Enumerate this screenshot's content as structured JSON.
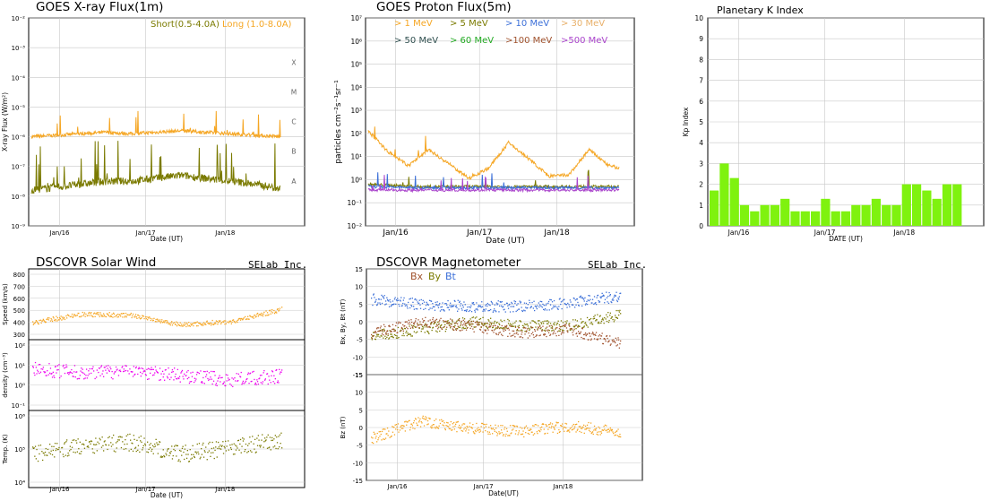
{
  "colors": {
    "orange": "#f5a623",
    "olive": "#7a7a00",
    "green": "#7ff20f",
    "magenta": "#ee00ee",
    "blue": "#3b6fd8",
    "brown": "#a0522d",
    "grid": "#c8c8c8"
  },
  "chart_data": [
    {
      "id": "xray",
      "type": "line",
      "title": "GOES X-ray Flux(1m)",
      "ylabel": "X-ray Flux (W/m²)",
      "xlabel": "Date (UT)",
      "yscale": "log",
      "ylim": [
        -9,
        -2
      ],
      "ytick_labels": [
        "10⁻²",
        "10⁻³",
        "10⁻⁴",
        "10⁻⁵",
        "10⁻⁶",
        "10⁻⁷",
        "10⁻⁸",
        "10⁻⁹"
      ],
      "flare_classes": [
        "X",
        "M",
        "C",
        "B",
        "A"
      ],
      "x_ticks": [
        "Jan/16",
        "Jan/17",
        "Jan/18"
      ],
      "legend": [
        {
          "name": "Short(0.5-4.0A)",
          "color": "#7a7a00"
        },
        {
          "name": "Long (1.0-8.0A)",
          "color": "#f5a623"
        }
      ],
      "series": [
        {
          "name": "Long (1.0-8.0A)",
          "color": "#f5a623",
          "x": [
            0,
            0.5,
            1,
            1.5,
            2,
            2.5,
            3,
            3.5,
            4,
            4.5,
            5
          ],
          "values": [
            -6,
            -5.95,
            -5.9,
            -5.85,
            -5.9,
            -5.85,
            -5.8,
            -5.85,
            -5.9,
            -5.95,
            -6
          ]
        },
        {
          "name": "Short(0.5-4.0A)",
          "color": "#7a7a00",
          "x": [
            0,
            0.5,
            1,
            1.5,
            2,
            2.5,
            3,
            3.5,
            4,
            4.5,
            5
          ],
          "values": [
            -7.8,
            -7.7,
            -7.6,
            -7.5,
            -7.5,
            -7.4,
            -7.3,
            -7.4,
            -7.5,
            -7.6,
            -7.75
          ]
        }
      ]
    },
    {
      "id": "proton",
      "type": "line",
      "title": "GOES Proton Flux(5m)",
      "ylabel": "particles cm⁻²s⁻¹sr⁻¹",
      "xlabel": "Date (UT)",
      "yscale": "log",
      "ylim": [
        -2,
        7
      ],
      "ytick_labels": [
        "10⁷",
        "10⁶",
        "10⁵",
        "10⁴",
        "10³",
        "10²",
        "10¹",
        "10⁰",
        "10⁻¹",
        "10⁻²"
      ],
      "x_ticks": [
        "Jan/16",
        "Jan/17",
        "Jan/18"
      ],
      "legend": [
        {
          "name": "> 1 MeV",
          "color": "#f5a623"
        },
        {
          "name": "> 5 MeV",
          "color": "#7a7a00"
        },
        {
          "name": "> 10 MeV",
          "color": "#3b6fd8"
        },
        {
          "name": "> 30 MeV",
          "color": "#e8b06a"
        },
        {
          "name": "> 50 MeV",
          "color": "#2f4f4f"
        },
        {
          "name": "> 60 MeV",
          "color": "#22aa22"
        },
        {
          "name": ">100 MeV",
          "color": "#a0522d"
        },
        {
          "name": ">500 MeV",
          "color": "#aa44cc"
        }
      ],
      "series": [
        {
          "name": "> 1 MeV",
          "color": "#f5a623",
          "x": [
            0,
            0.4,
            0.8,
            1.2,
            1.6,
            2,
            2.4,
            2.8,
            3.2,
            3.6,
            4,
            4.4,
            4.8,
            5
          ],
          "values": [
            2.1,
            1.2,
            0.6,
            1.3,
            0.7,
            0.05,
            0.5,
            1.6,
            0.9,
            0.15,
            0.2,
            1.3,
            0.6,
            0.5
          ]
        },
        {
          "name": "> 5 MeV",
          "color": "#7a7a00",
          "x": [
            0,
            1,
            2,
            3,
            4,
            5
          ],
          "values": [
            -0.2,
            -0.3,
            -0.3,
            -0.3,
            -0.3,
            -0.3
          ]
        },
        {
          "name": "> 10 MeV",
          "color": "#3b6fd8",
          "x": [
            0,
            1,
            2,
            3,
            4,
            5
          ],
          "values": [
            -0.3,
            -0.35,
            -0.35,
            -0.35,
            -0.35,
            -0.35
          ]
        },
        {
          "name": ">500 MeV",
          "color": "#aa44cc",
          "x": [
            0,
            1,
            2,
            3,
            4,
            5
          ],
          "values": [
            -0.45,
            -0.45,
            -0.45,
            -0.45,
            -0.45,
            -0.45
          ]
        }
      ]
    },
    {
      "id": "kp",
      "type": "bar",
      "title": "Planetary K Index",
      "ylabel": "Kp Index",
      "xlabel": "DATE (UT)",
      "ylim": [
        0,
        10
      ],
      "ytick_labels": [
        "10",
        "9",
        "8",
        "7",
        "6",
        "5",
        "4",
        "3",
        "2",
        "1",
        "0"
      ],
      "x_ticks": [
        "Jan/16",
        "Jan/17",
        "Jan/18"
      ],
      "values": [
        1.7,
        3,
        2.3,
        1,
        0.7,
        1,
        1,
        1.3,
        0.7,
        0.7,
        0.7,
        1.3,
        0.7,
        0.7,
        1,
        1,
        1.3,
        1,
        1,
        2,
        2,
        1.7,
        1.3,
        2,
        2
      ]
    },
    {
      "id": "wind",
      "type": "scatter",
      "title": "DSCOVR Solar Wind",
      "brand": "SELab Inc.",
      "xlabel": "Date (UT)",
      "x_ticks": [
        "Jan/16",
        "Jan/17",
        "Jan/18"
      ],
      "subplots": [
        {
          "ylabel": "Speed (km/s)",
          "ylim": [
            200,
            800
          ],
          "ytick_labels": [
            "800",
            "700",
            "600",
            "500",
            "400",
            "300"
          ],
          "color": "#f5a623",
          "x": [
            0,
            1,
            2,
            3,
            4,
            5
          ],
          "values": [
            350,
            420,
            410,
            330,
            360,
            460
          ]
        },
        {
          "ylabel": "density (cm⁻³)",
          "ylim": [
            -1,
            2
          ],
          "ytick_labels": [
            "10²",
            "10¹",
            "10⁰",
            "10⁻¹"
          ],
          "color": "#ee00ee",
          "x": [
            0,
            1,
            2,
            3,
            4,
            5
          ],
          "values": [
            0.8,
            0.6,
            0.7,
            0.5,
            0.3,
            0.5
          ]
        },
        {
          "ylabel": "Temp. (K)",
          "ylim": [
            3.5,
            6.2
          ],
          "ytick_labels": [
            "10⁶",
            "10⁵",
            "10⁴"
          ],
          "color": "#7a7a00",
          "x": [
            0,
            1,
            2,
            3,
            4,
            5
          ],
          "values": [
            4.7,
            5,
            5.1,
            4.7,
            4.9,
            5.2
          ]
        }
      ]
    },
    {
      "id": "mag",
      "type": "scatter",
      "title": "DSCOVR Magnetometer",
      "brand": "SELab Inc.",
      "xlabel": "Date(UT)",
      "x_ticks": [
        "Jan/16",
        "Jan/17",
        "Jan/18"
      ],
      "legend": [
        {
          "name": "Bx",
          "color": "#a0522d"
        },
        {
          "name": "By",
          "color": "#7a7a00"
        },
        {
          "name": "Bt",
          "color": "#3b6fd8"
        }
      ],
      "subplots": [
        {
          "ylabel": "Bx, By, Bt (nT)",
          "ylim": [
            -15,
            15
          ],
          "ytick_labels": [
            "15",
            "10",
            "5",
            "0",
            "-5",
            "-10",
            "-15"
          ],
          "series": [
            {
              "name": "Bt",
              "color": "#3b6fd8",
              "x": [
                0,
                1,
                2,
                3,
                4,
                5
              ],
              "values": [
                6.5,
                5,
                4.5,
                4.5,
                5.5,
                7.5
              ]
            },
            {
              "name": "By",
              "color": "#7a7a00",
              "x": [
                0,
                1,
                2,
                3,
                4,
                5
              ],
              "values": [
                -4,
                -2,
                0,
                -1,
                -1,
                2
              ]
            },
            {
              "name": "Bx",
              "color": "#a0522d",
              "x": [
                0,
                1,
                2,
                3,
                4,
                5
              ],
              "values": [
                -3,
                0,
                -1,
                -3,
                -2,
                -6
              ]
            }
          ]
        },
        {
          "ylabel": "Bz (nT)",
          "ylim": [
            -15,
            15
          ],
          "ytick_labels": [
            "15",
            "10",
            "5",
            "0",
            "-5",
            "-10",
            "-15"
          ],
          "series": [
            {
              "name": "Bz",
              "color": "#f5a623",
              "x": [
                0,
                1,
                2,
                3,
                4,
                5
              ],
              "values": [
                -3,
                2,
                0,
                -1,
                0.5,
                -1
              ]
            }
          ]
        }
      ]
    }
  ]
}
